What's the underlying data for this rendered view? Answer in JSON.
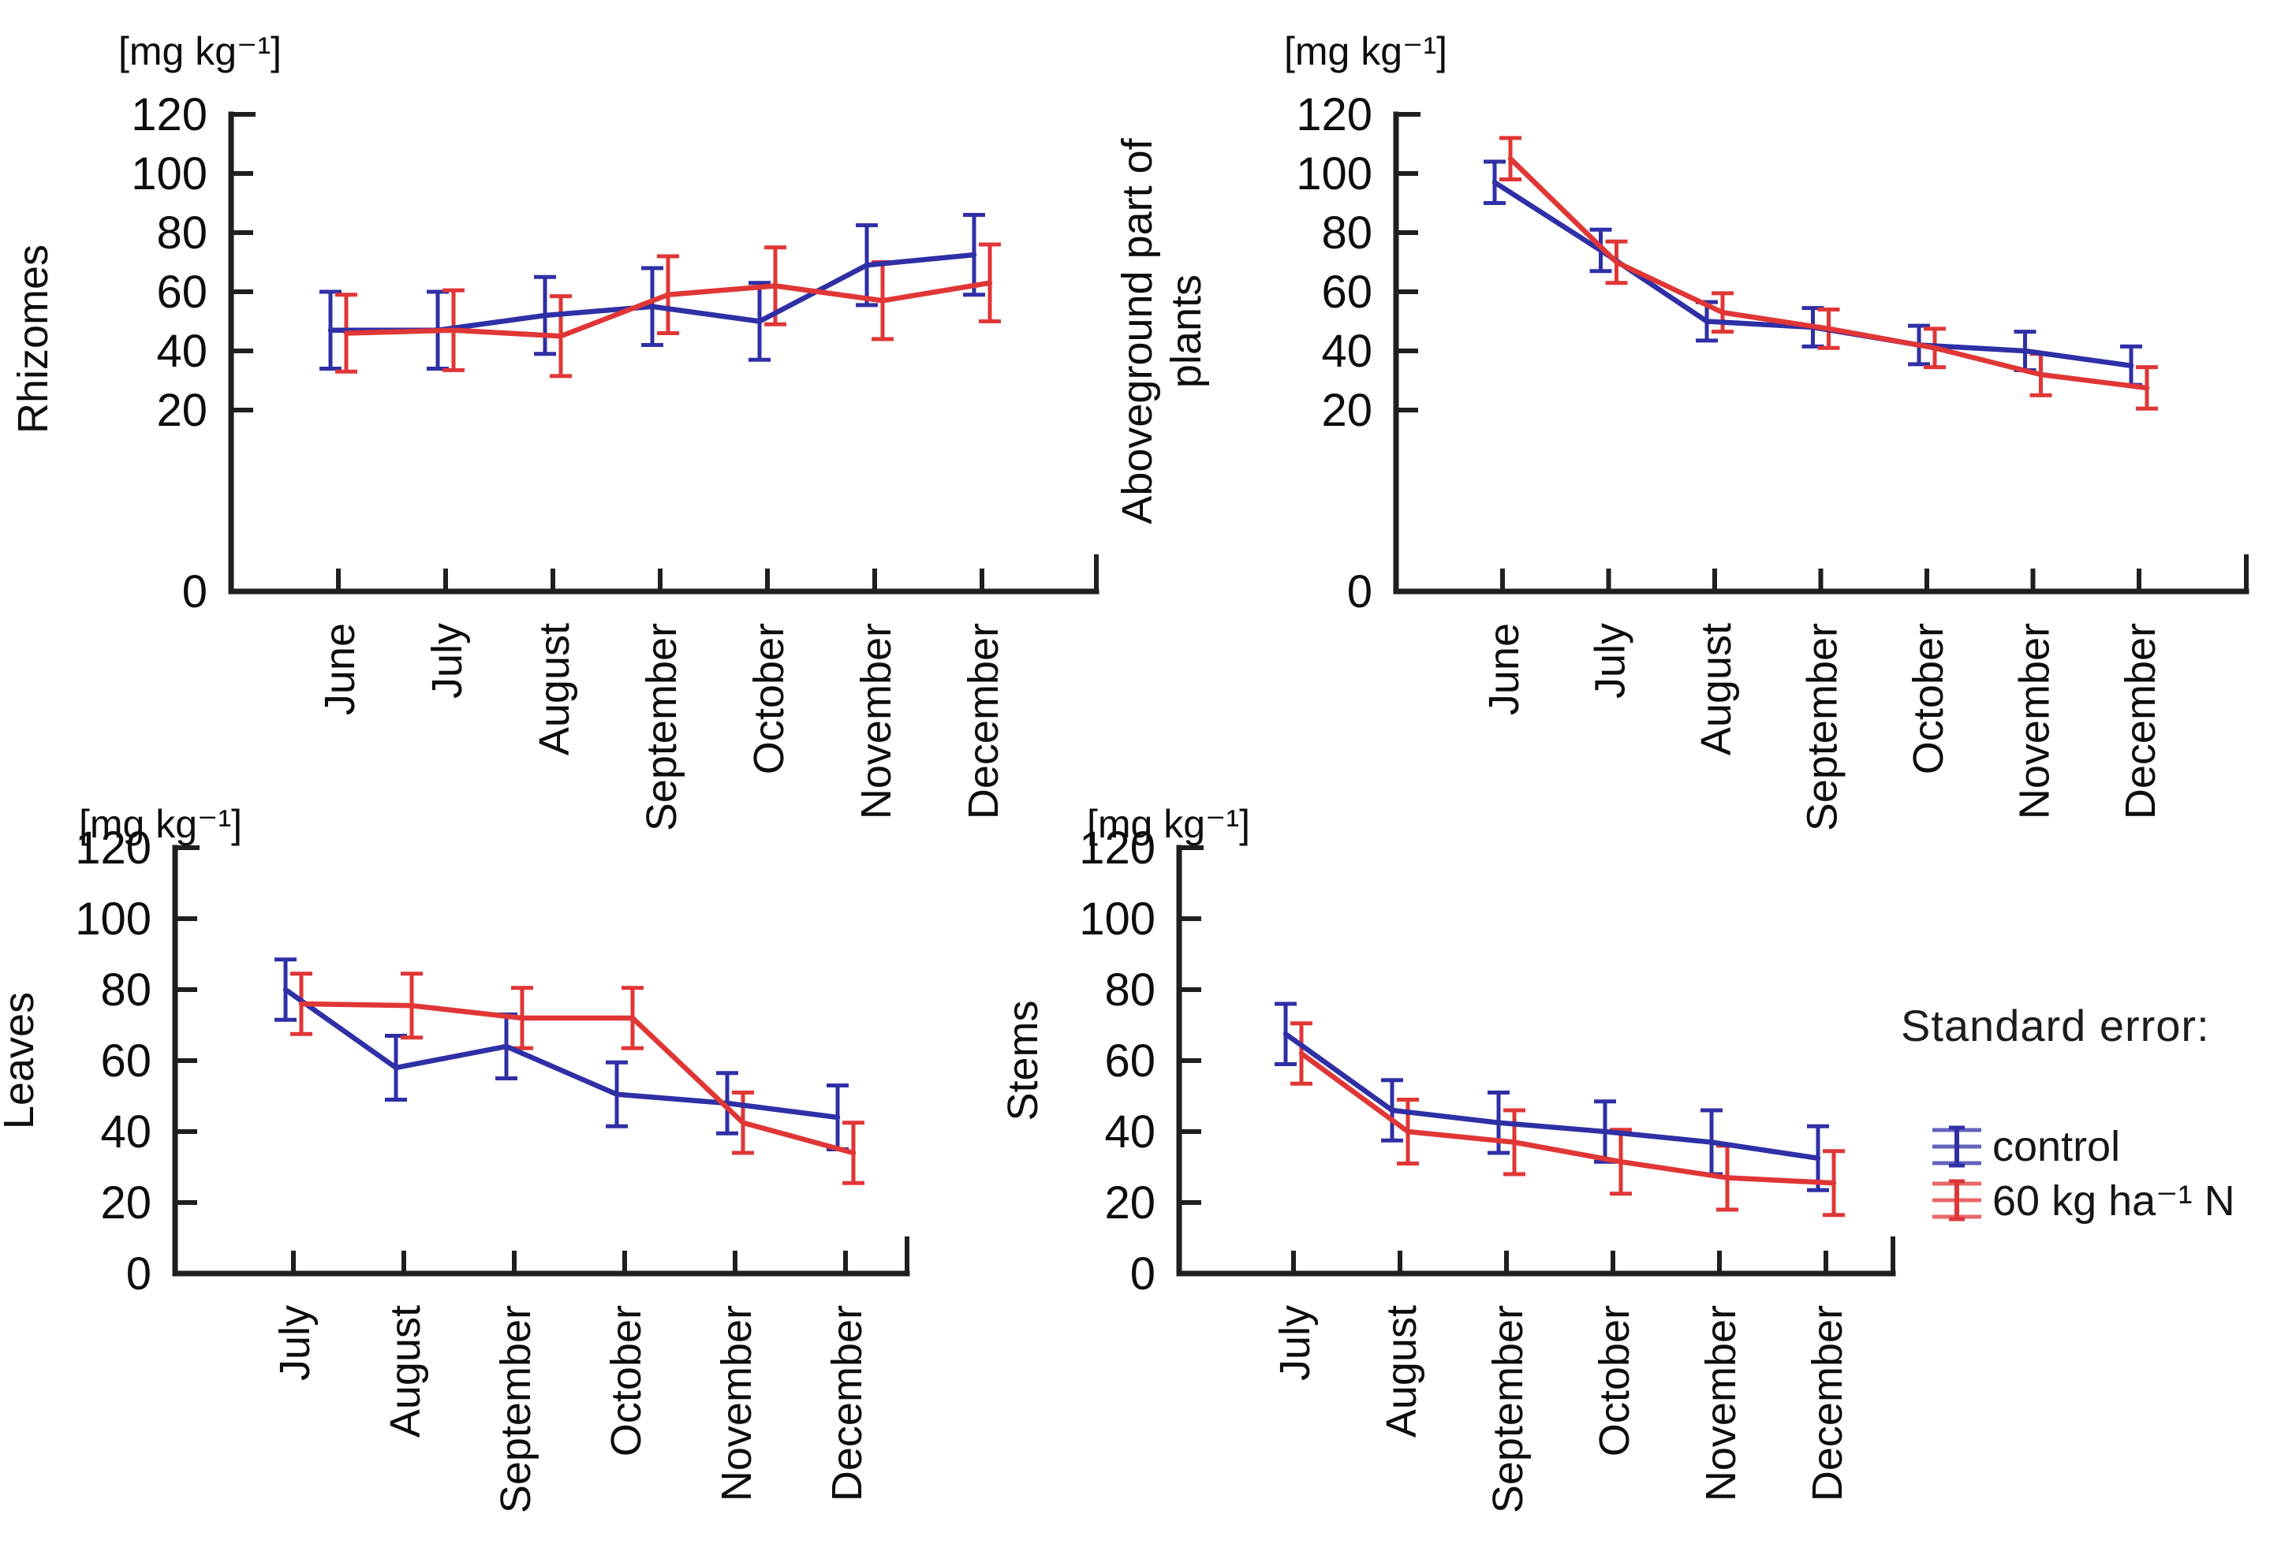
{
  "figure": {
    "background": "#ffffff",
    "axis_color": "#1f1f1f",
    "text_color": "#0d0d0d"
  },
  "legend": {
    "title": "Standard error:",
    "items": [
      {
        "label": "control",
        "color": "#2f2fa6",
        "icon": "error-bar-icon"
      },
      {
        "label": "60 kg ha⁻¹ N",
        "color": "#e03636",
        "icon": "error-bar-icon"
      }
    ]
  },
  "chart_data": [
    {
      "id": "rhizomes",
      "type": "line",
      "title": "",
      "unit_label": "[mg kg⁻¹]",
      "ylabel": "Rhizomes",
      "ylabel_lines": [
        "Rhizomes"
      ],
      "xlabel": "",
      "categories": [
        "June",
        "July",
        "August",
        "September",
        "October",
        "November",
        "December"
      ],
      "ylim": [
        0,
        120
      ],
      "yticks": [
        0,
        20,
        40,
        60,
        80,
        100,
        120
      ],
      "grid": false,
      "legend_position": "none",
      "series": [
        {
          "name": "control",
          "color": "#2f2fa6",
          "values": [
            47,
            47,
            52,
            55,
            50,
            69,
            72.5
          ],
          "se": [
            13,
            13,
            13,
            13,
            13,
            13.5,
            13.5
          ]
        },
        {
          "name": "60 kg ha⁻¹ N",
          "color": "#e03636",
          "values": [
            46,
            47,
            45,
            59,
            62,
            57,
            63
          ],
          "se": [
            13,
            13.5,
            13.5,
            13,
            13,
            13,
            13
          ]
        }
      ]
    },
    {
      "id": "aboveground",
      "type": "line",
      "title": "",
      "unit_label": "[mg kg⁻¹]",
      "ylabel": "Aboveground part of plants",
      "ylabel_lines": [
        "Aboveground part of",
        "plants"
      ],
      "xlabel": "",
      "categories": [
        "June",
        "July",
        "August",
        "September",
        "October",
        "November",
        "December"
      ],
      "ylim": [
        0,
        120
      ],
      "yticks": [
        0,
        20,
        40,
        60,
        80,
        100,
        120
      ],
      "grid": false,
      "legend_position": "none",
      "series": [
        {
          "name": "control",
          "color": "#2f2fa6",
          "values": [
            97,
            74,
            50,
            48,
            42,
            40,
            35
          ],
          "se": [
            7,
            7,
            6.5,
            6.5,
            6.5,
            6.5,
            6.5
          ]
        },
        {
          "name": "60 kg ha⁻¹ N",
          "color": "#e03636",
          "values": [
            105,
            70,
            53,
            47.5,
            41,
            32,
            27.5
          ],
          "se": [
            7,
            7,
            6.5,
            6.5,
            6.5,
            7,
            7
          ]
        }
      ]
    },
    {
      "id": "leaves",
      "type": "line",
      "title": "",
      "unit_label": "[mg kg⁻¹]",
      "ylabel": "Leaves",
      "ylabel_lines": [
        "Leaves"
      ],
      "xlabel": "",
      "categories": [
        "July",
        "August",
        "September",
        "October",
        "November",
        "December"
      ],
      "ylim": [
        0,
        120
      ],
      "yticks": [
        0,
        20,
        40,
        60,
        80,
        100,
        120
      ],
      "grid": false,
      "legend_position": "none",
      "series": [
        {
          "name": "control",
          "color": "#2f2fa6",
          "values": [
            80,
            58,
            64,
            50.5,
            48,
            44
          ],
          "se": [
            8.5,
            9,
            9,
            9,
            8.5,
            9
          ]
        },
        {
          "name": "60 kg ha⁻¹ N",
          "color": "#e03636",
          "values": [
            76,
            75.5,
            72,
            72,
            42.5,
            34
          ],
          "se": [
            8.5,
            9,
            8.5,
            8.5,
            8.5,
            8.5
          ]
        }
      ]
    },
    {
      "id": "stems",
      "type": "line",
      "title": "",
      "unit_label": "[mg kg⁻¹]",
      "ylabel": "Stems",
      "ylabel_lines": [
        "Stems"
      ],
      "xlabel": "",
      "categories": [
        "July",
        "August",
        "September",
        "October",
        "November",
        "December"
      ],
      "ylim": [
        0,
        120
      ],
      "yticks": [
        0,
        20,
        40,
        60,
        80,
        100,
        120
      ],
      "grid": false,
      "legend_position": "none",
      "series": [
        {
          "name": "control",
          "color": "#2f2fa6",
          "values": [
            67.5,
            46,
            42.5,
            40,
            37,
            32.5
          ],
          "se": [
            8.5,
            8.5,
            8.5,
            8.5,
            9,
            9
          ]
        },
        {
          "name": "60 kg ha⁻¹ N",
          "color": "#e03636",
          "values": [
            62,
            40,
            37,
            31.5,
            27,
            25.5
          ],
          "se": [
            8.5,
            9,
            9,
            9,
            9,
            9
          ]
        }
      ]
    }
  ]
}
